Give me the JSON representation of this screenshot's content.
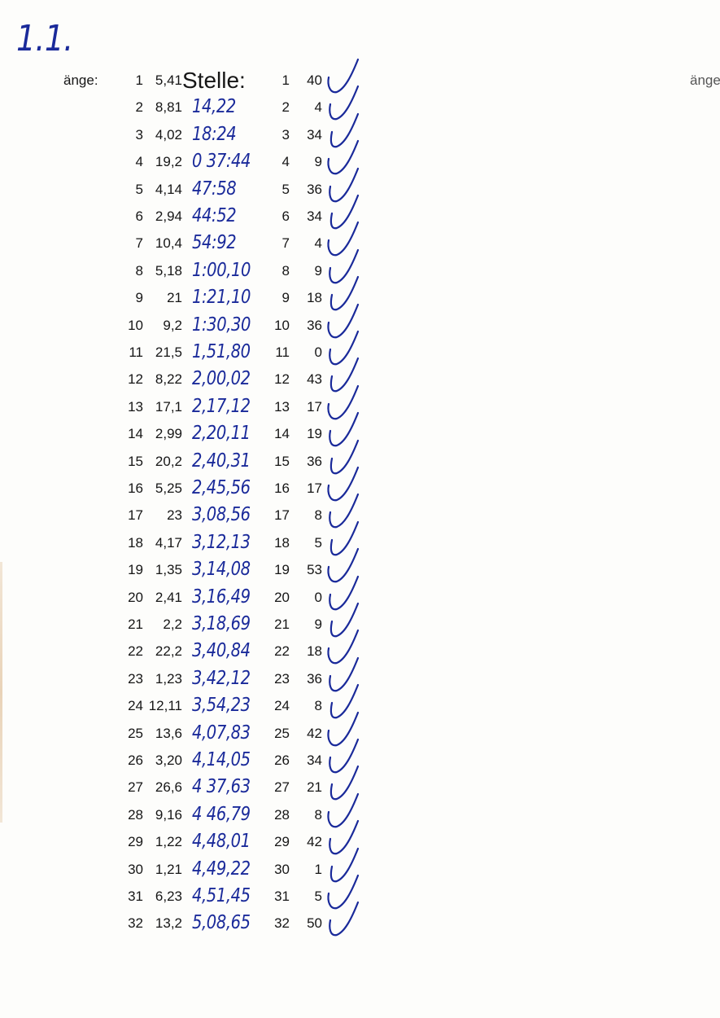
{
  "corner_note": "1.1.",
  "left_label": "änge:",
  "right_label": "änge:",
  "column_heading": "Stelle:",
  "ink_color": "#1a2a9a",
  "rows": [
    {
      "n": "1",
      "value": "5,41",
      "hand": "",
      "n2": "1",
      "value2": "40",
      "checked": true
    },
    {
      "n": "2",
      "value": "8,81",
      "hand": "14,22",
      "n2": "2",
      "value2": "4",
      "checked": true
    },
    {
      "n": "3",
      "value": "4,02",
      "hand": "18:24",
      "n2": "3",
      "value2": "34",
      "checked": true
    },
    {
      "n": "4",
      "value": "19,2",
      "hand": "0 37:44",
      "n2": "4",
      "value2": "9",
      "checked": true
    },
    {
      "n": "5",
      "value": "4,14",
      "hand": "47:58",
      "n2": "5",
      "value2": "36",
      "checked": true
    },
    {
      "n": "6",
      "value": "2,94",
      "hand": "44:52",
      "n2": "6",
      "value2": "34",
      "checked": true
    },
    {
      "n": "7",
      "value": "10,4",
      "hand": "54:92",
      "n2": "7",
      "value2": "4",
      "checked": true
    },
    {
      "n": "8",
      "value": "5,18",
      "hand": "1:00,10",
      "n2": "8",
      "value2": "9",
      "checked": true
    },
    {
      "n": "9",
      "value": "21",
      "hand": "1:21,10",
      "n2": "9",
      "value2": "18",
      "checked": true
    },
    {
      "n": "10",
      "value": "9,2",
      "hand": "1:30,30",
      "n2": "10",
      "value2": "36",
      "checked": true
    },
    {
      "n": "11",
      "value": "21,5",
      "hand": "1,51,80",
      "n2": "11",
      "value2": "0",
      "checked": true
    },
    {
      "n": "12",
      "value": "8,22",
      "hand": "2,00,02",
      "n2": "12",
      "value2": "43",
      "checked": true
    },
    {
      "n": "13",
      "value": "17,1",
      "hand": "2,17,12",
      "n2": "13",
      "value2": "17",
      "checked": true
    },
    {
      "n": "14",
      "value": "2,99",
      "hand": "2,20,11",
      "n2": "14",
      "value2": "19",
      "checked": true
    },
    {
      "n": "15",
      "value": "20,2",
      "hand": "2,40,31",
      "n2": "15",
      "value2": "36",
      "checked": true
    },
    {
      "n": "16",
      "value": "5,25",
      "hand": "2,45,56",
      "n2": "16",
      "value2": "17",
      "checked": true
    },
    {
      "n": "17",
      "value": "23",
      "hand": "3,08,56",
      "n2": "17",
      "value2": "8",
      "checked": true
    },
    {
      "n": "18",
      "value": "4,17",
      "hand": "3,12,13",
      "n2": "18",
      "value2": "5",
      "checked": true
    },
    {
      "n": "19",
      "value": "1,35",
      "hand": "3,14,08",
      "n2": "19",
      "value2": "53",
      "checked": true
    },
    {
      "n": "20",
      "value": "2,41",
      "hand": "3,16,49",
      "n2": "20",
      "value2": "0",
      "checked": true
    },
    {
      "n": "21",
      "value": "2,2",
      "hand": "3,18,69",
      "n2": "21",
      "value2": "9",
      "checked": true
    },
    {
      "n": "22",
      "value": "22,2",
      "hand": "3,40,84",
      "n2": "22",
      "value2": "18",
      "checked": true
    },
    {
      "n": "23",
      "value": "1,23",
      "hand": "3,42,12",
      "n2": "23",
      "value2": "36",
      "checked": true
    },
    {
      "n": "24",
      "value": "12,11",
      "hand": "3,54,23",
      "n2": "24",
      "value2": "8",
      "checked": true
    },
    {
      "n": "25",
      "value": "13,6",
      "hand": "4,07,83",
      "n2": "25",
      "value2": "42",
      "checked": true
    },
    {
      "n": "26",
      "value": "3,20",
      "hand": "4,14,05",
      "n2": "26",
      "value2": "34",
      "checked": true
    },
    {
      "n": "27",
      "value": "26,6",
      "hand": "4 37,63",
      "n2": "27",
      "value2": "21",
      "checked": true
    },
    {
      "n": "28",
      "value": "9,16",
      "hand": "4 46,79",
      "n2": "28",
      "value2": "8",
      "checked": true
    },
    {
      "n": "29",
      "value": "1,22",
      "hand": "4,48,01",
      "n2": "29",
      "value2": "42",
      "checked": true
    },
    {
      "n": "30",
      "value": "1,21",
      "hand": "4,49,22",
      "n2": "30",
      "value2": "1",
      "checked": true
    },
    {
      "n": "31",
      "value": "6,23",
      "hand": "4,51,45",
      "n2": "31",
      "value2": "5",
      "checked": true
    },
    {
      "n": "32",
      "value": "13,2",
      "hand": "5,08,65",
      "n2": "32",
      "value2": "50",
      "checked": true
    }
  ]
}
